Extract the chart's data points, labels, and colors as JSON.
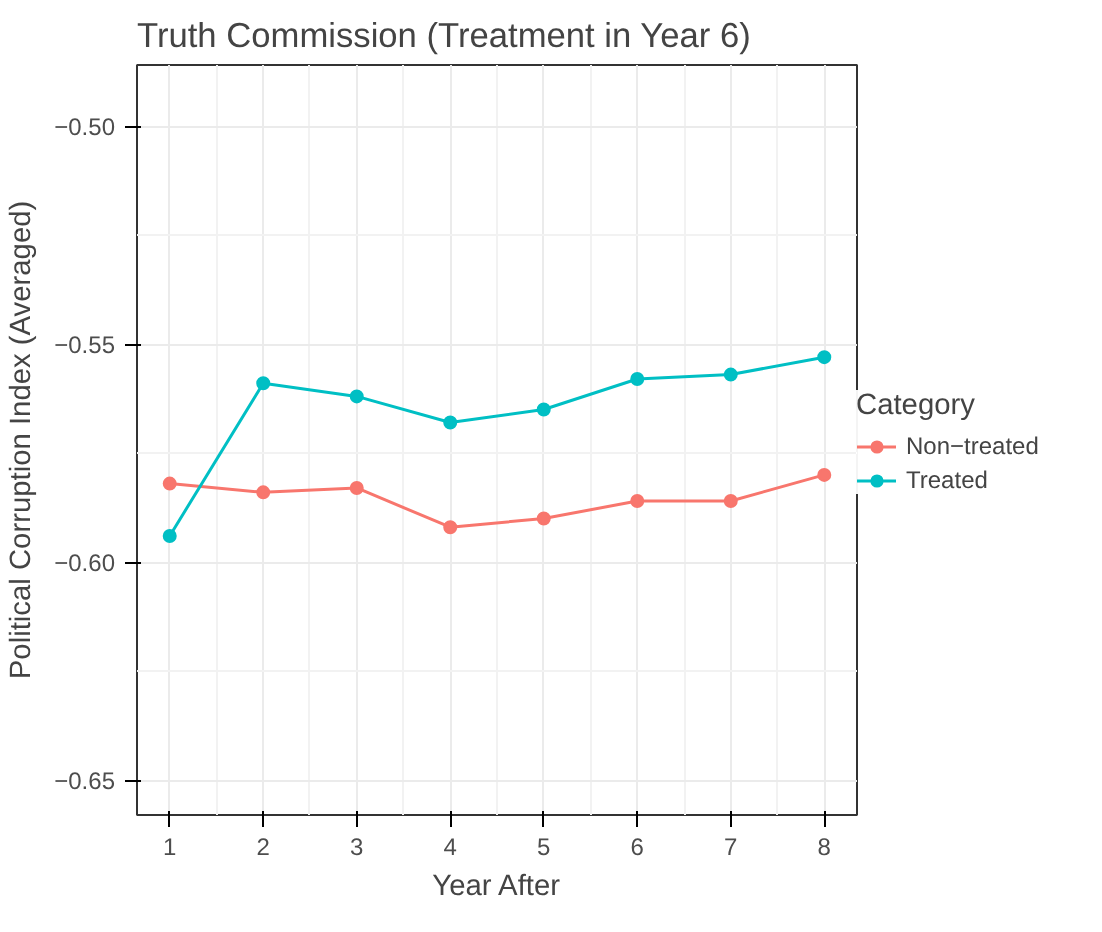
{
  "chart_data": {
    "type": "line",
    "title": "Truth Commission (Treatment in Year 6)",
    "xlabel": "Year After",
    "ylabel": "Political Corruption Index (Averaged)",
    "legend_title": "Category",
    "x": [
      1,
      2,
      3,
      4,
      5,
      6,
      7,
      8
    ],
    "series": [
      {
        "name": "Non−treated",
        "color": "#f8766d",
        "values": [
          -0.582,
          -0.584,
          -0.583,
          -0.592,
          -0.59,
          -0.586,
          -0.586,
          -0.58
        ]
      },
      {
        "name": "Treated",
        "color": "#00bfc4",
        "values": [
          -0.594,
          -0.559,
          -0.562,
          -0.568,
          -0.565,
          -0.558,
          -0.557,
          -0.553
        ]
      }
    ],
    "xlim": [
      0.65,
      8.35
    ],
    "ylim": [
      -0.658,
      -0.486
    ],
    "xticks": [
      1,
      2,
      3,
      4,
      5,
      6,
      7,
      8
    ],
    "yticks": [
      {
        "value": -0.65,
        "label": "−0.65"
      },
      {
        "value": -0.6,
        "label": "−0.60"
      },
      {
        "value": -0.55,
        "label": "−0.55"
      },
      {
        "value": -0.5,
        "label": "−0.50"
      }
    ],
    "grid": true,
    "legend": "right",
    "marker": "circle",
    "line_style": "solid"
  }
}
